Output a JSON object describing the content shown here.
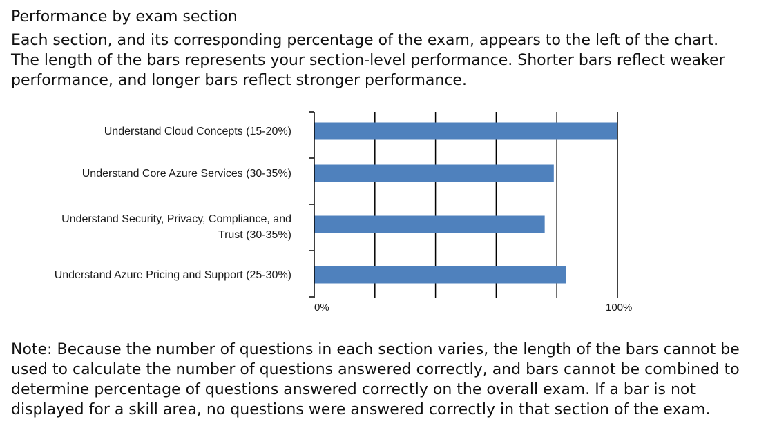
{
  "heading": "Performance by exam section",
  "description_lines": [
    "Each section, and its corresponding percentage of the exam, appears to the left of the chart.",
    "The length of the bars represents your section-level performance. Shorter bars reflect weaker",
    "performance, and longer bars reflect stronger performance."
  ],
  "note_lines": [
    "Note: Because the number of questions in each section varies, the length of the bars cannot be",
    "used to calculate the number of questions answered correctly, and bars cannot be combined to",
    "determine percentage of questions answered correctly on the overall exam. If a bar is not",
    "displayed for a skill area, no questions were answered correctly in that section of the exam."
  ],
  "chart_data": {
    "type": "bar",
    "orientation": "horizontal",
    "categories": [
      [
        "Understand Cloud Concepts (15-20%)"
      ],
      [
        "Understand Core Azure Services (30-35%)"
      ],
      [
        "Understand Security, Privacy, Compliance, and",
        "Trust (30-35%)"
      ],
      [
        "Understand Azure Pricing and Support (25-30%)"
      ]
    ],
    "values": [
      100,
      79,
      76,
      83
    ],
    "xlim": [
      0,
      100
    ],
    "x_ticks": [
      0,
      20,
      40,
      60,
      80,
      100
    ],
    "x_tick_labels": [
      "0%",
      "100%"
    ],
    "grid": true,
    "bar_color": "#4f81bd",
    "axis_color": "#000000"
  }
}
